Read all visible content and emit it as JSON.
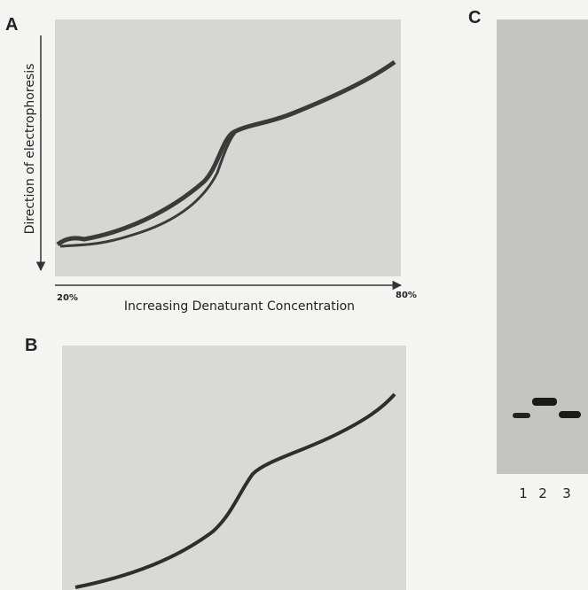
{
  "panels": [
    {
      "label": "A",
      "y_label": "Direction of electrophoresis",
      "x_label": "Increasing Denaturant Concentration",
      "x_start": "20%",
      "x_end": "80%"
    },
    {
      "label": "B"
    },
    {
      "label": "C",
      "lanes": [
        "1",
        "2",
        "3"
      ]
    }
  ]
}
